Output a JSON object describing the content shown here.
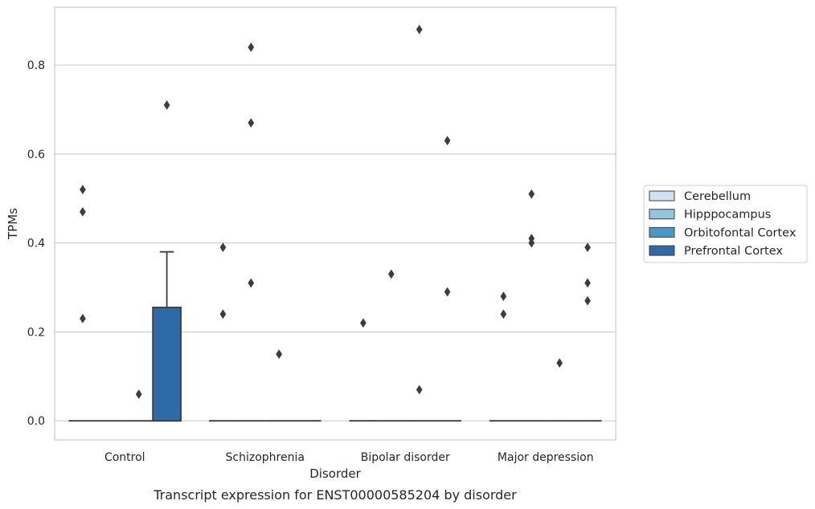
{
  "chart_data": {
    "type": "box",
    "categories": [
      "Control",
      "Schizophrenia",
      "Bipolar disorder",
      "Major depression"
    ],
    "xlabel": "Disorder",
    "ylabel": "TPMs",
    "caption": "Transcript expression for ENST00000585204 by disorder",
    "ylim": [
      -0.043,
      0.93
    ],
    "yticks": [
      0.0,
      0.2,
      0.4,
      0.6,
      0.8
    ],
    "ytick_labels": [
      "0.0",
      "0.2",
      "0.4",
      "0.6",
      "0.8"
    ],
    "grid": "horizontal",
    "legend_position": "right",
    "series": [
      {
        "name": "Cerebellum",
        "color": "#d0e1f2",
        "boxes": [
          {
            "category": "Control",
            "q1": 0,
            "median": 0,
            "q3": 0,
            "whisker_low": 0,
            "whisker_high": 0,
            "outliers": [
              0.52,
              0.47,
              0.23
            ]
          },
          {
            "category": "Schizophrenia",
            "q1": 0,
            "median": 0,
            "q3": 0,
            "whisker_low": 0,
            "whisker_high": 0,
            "outliers": [
              0.39,
              0.24
            ]
          },
          {
            "category": "Bipolar disorder",
            "q1": 0,
            "median": 0,
            "q3": 0,
            "whisker_low": 0,
            "whisker_high": 0,
            "outliers": [
              0.22
            ]
          },
          {
            "category": "Major depression",
            "q1": 0,
            "median": 0,
            "q3": 0,
            "whisker_low": 0,
            "whisker_high": 0,
            "outliers": [
              0.28,
              0.24
            ]
          }
        ]
      },
      {
        "name": "Hipppocampus",
        "color": "#94c4df",
        "boxes": [
          {
            "category": "Control",
            "q1": 0,
            "median": 0,
            "q3": 0,
            "whisker_low": 0,
            "whisker_high": 0,
            "outliers": []
          },
          {
            "category": "Schizophrenia",
            "q1": 0,
            "median": 0,
            "q3": 0,
            "whisker_low": 0,
            "whisker_high": 0,
            "outliers": [
              0.84,
              0.67,
              0.31
            ]
          },
          {
            "category": "Bipolar disorder",
            "q1": 0,
            "median": 0,
            "q3": 0,
            "whisker_low": 0,
            "whisker_high": 0,
            "outliers": [
              0.33
            ]
          },
          {
            "category": "Major depression",
            "q1": 0,
            "median": 0,
            "q3": 0,
            "whisker_low": 0,
            "whisker_high": 0,
            "outliers": [
              0.51,
              0.41,
              0.4
            ]
          }
        ]
      },
      {
        "name": "Orbitofontal Cortex",
        "color": "#4a98c9",
        "boxes": [
          {
            "category": "Control",
            "q1": 0,
            "median": 0,
            "q3": 0,
            "whisker_low": 0,
            "whisker_high": 0,
            "outliers": [
              0.06
            ]
          },
          {
            "category": "Schizophrenia",
            "q1": 0,
            "median": 0,
            "q3": 0,
            "whisker_low": 0,
            "whisker_high": 0,
            "outliers": [
              0.15
            ]
          },
          {
            "category": "Bipolar disorder",
            "q1": 0,
            "median": 0,
            "q3": 0,
            "whisker_low": 0,
            "whisker_high": 0,
            "outliers": [
              0.88,
              0.07
            ]
          },
          {
            "category": "Major depression",
            "q1": 0,
            "median": 0,
            "q3": 0,
            "whisker_low": 0,
            "whisker_high": 0,
            "outliers": [
              0.13
            ]
          }
        ]
      },
      {
        "name": "Prefrontal Cortex",
        "color": "#2e6aa8",
        "boxes": [
          {
            "category": "Control",
            "q1": 0,
            "median": 0,
            "q3": 0.255,
            "whisker_low": 0,
            "whisker_high": 0.38,
            "outliers": [
              0.71
            ]
          },
          {
            "category": "Schizophrenia",
            "q1": 0,
            "median": 0,
            "q3": 0,
            "whisker_low": 0,
            "whisker_high": 0,
            "outliers": []
          },
          {
            "category": "Bipolar disorder",
            "q1": 0,
            "median": 0,
            "q3": 0,
            "whisker_low": 0,
            "whisker_high": 0,
            "outliers": [
              0.63,
              0.29
            ]
          },
          {
            "category": "Major depression",
            "q1": 0,
            "median": 0,
            "q3": 0,
            "whisker_low": 0,
            "whisker_high": 0,
            "outliers": [
              0.39,
              0.31,
              0.27
            ]
          }
        ]
      }
    ]
  }
}
